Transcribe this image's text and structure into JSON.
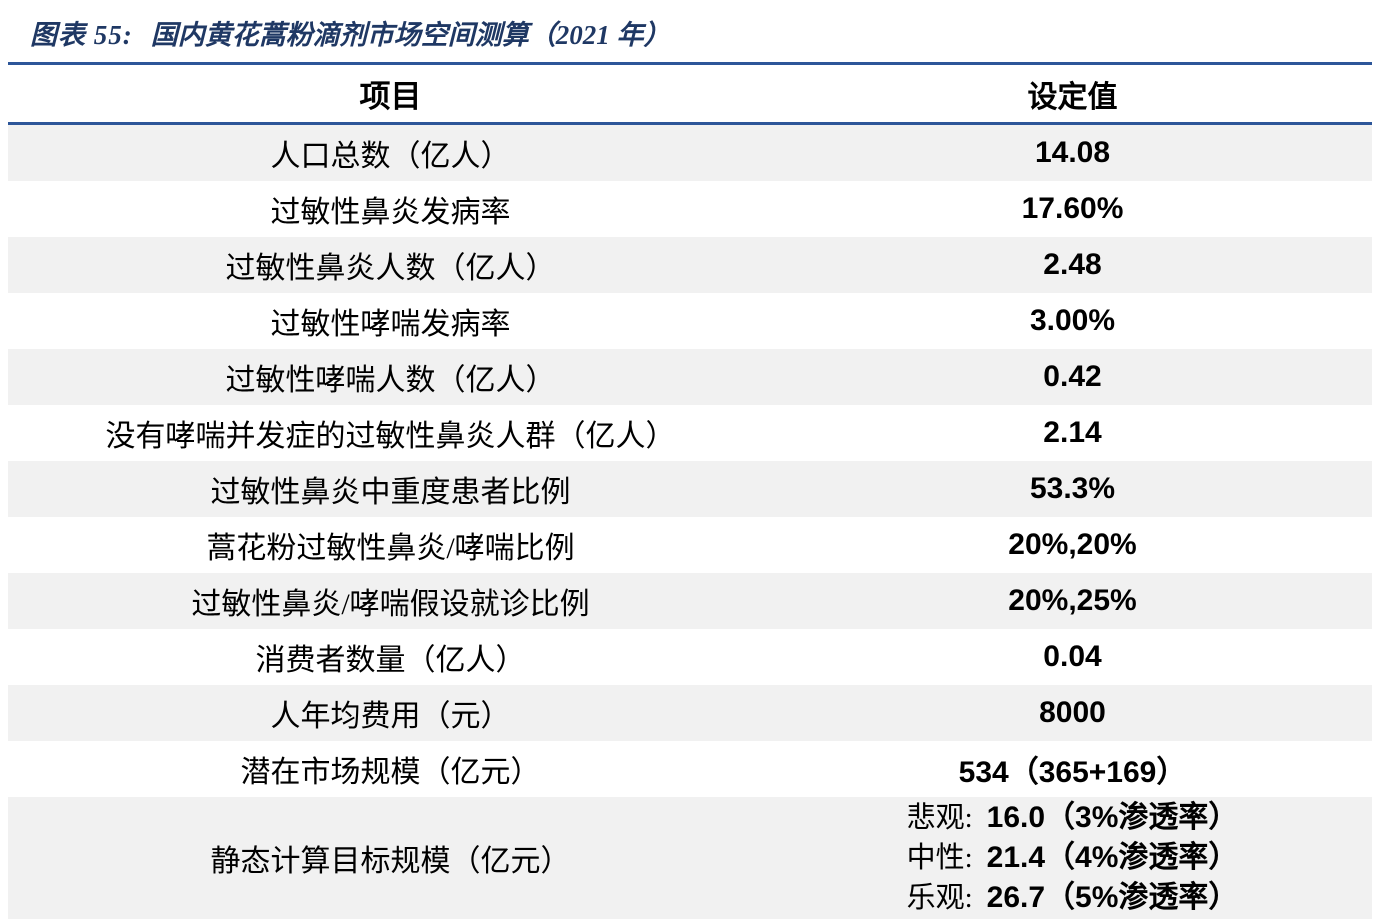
{
  "figure": {
    "number": "图表 55:",
    "title": "国内黄花蒿粉滴剂市场空间测算（2021 年）"
  },
  "colors": {
    "accent_rule": "#2D5699",
    "title_text": "#1F3864",
    "row_shade": "#F1F1F1"
  },
  "table": {
    "header": {
      "item": "项目",
      "value": "设定值"
    },
    "rows": [
      {
        "label": "人口总数（亿人）",
        "value": "14.08"
      },
      {
        "label": "过敏性鼻炎发病率",
        "value": "17.60%"
      },
      {
        "label": "过敏性鼻炎人数（亿人）",
        "value": "2.48"
      },
      {
        "label": "过敏性哮喘发病率",
        "value": "3.00%"
      },
      {
        "label": "过敏性哮喘人数（亿人）",
        "value": "0.42"
      },
      {
        "label": "没有哮喘并发症的过敏性鼻炎人群（亿人）",
        "value": "2.14"
      },
      {
        "label": "过敏性鼻炎中重度患者比例",
        "value": "53.3%"
      },
      {
        "label": "蒿花粉过敏性鼻炎/哮喘比例",
        "value": "20%,20%"
      },
      {
        "label": "过敏性鼻炎/哮喘假设就诊比例",
        "value": "20%,25%"
      },
      {
        "label": "消费者数量（亿人）",
        "value": "0.04"
      },
      {
        "label": "人年均费用（元）",
        "value": "8000"
      },
      {
        "label": "潜在市场规模（亿元）",
        "value": "534（365+169）"
      },
      {
        "label": "静态计算目标规模（亿元）",
        "scenarios": [
          {
            "label": "悲观:",
            "value": "16.0（3%渗透率）"
          },
          {
            "label": "中性:",
            "value": "21.4（4%渗透率）"
          },
          {
            "label": "乐观:",
            "value": "26.7（5%渗透率）"
          }
        ]
      }
    ]
  }
}
